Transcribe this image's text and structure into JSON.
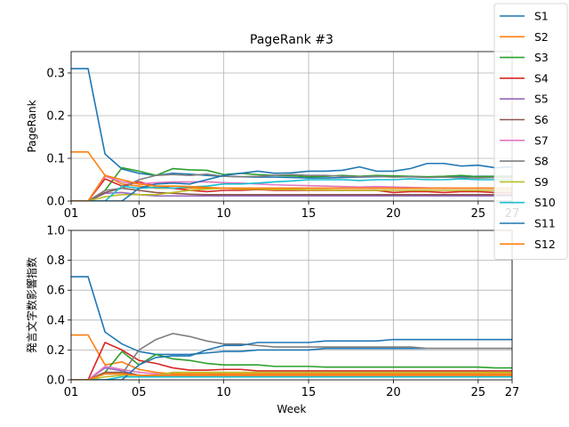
{
  "chart_data": [
    {
      "type": "line",
      "title": "PageRank #3",
      "xlabel": "",
      "ylabel": "PageRank",
      "x": [
        1,
        2,
        3,
        4,
        5,
        6,
        7,
        8,
        9,
        10,
        11,
        12,
        13,
        14,
        15,
        16,
        17,
        18,
        19,
        20,
        21,
        22,
        23,
        24,
        25,
        26,
        27
      ],
      "xticks": [
        1,
        5,
        10,
        15,
        20,
        25,
        27
      ],
      "xtick_labels": [
        "01",
        "05",
        "10",
        "15",
        "20",
        "25",
        "27"
      ],
      "xlim": [
        1,
        27
      ],
      "ylim": [
        0,
        0.35
      ],
      "yticks": [
        0.0,
        0.1,
        0.2,
        0.3
      ],
      "ytick_labels": [
        "0.0",
        "0.1",
        "0.2",
        "0.3"
      ],
      "grid": true,
      "legend_position": "top-right",
      "series": [
        {
          "name": "S1",
          "color": "#1f77b4",
          "values": [
            0.31,
            0.31,
            0.11,
            0.075,
            0.065,
            0.06,
            0.065,
            0.063,
            0.06,
            0.058,
            0.057,
            0.056,
            0.056,
            0.055,
            0.054,
            0.054,
            0.055,
            0.056,
            0.057,
            0.058,
            0.057,
            0.056,
            0.056,
            0.057,
            0.058,
            0.058,
            0.058
          ]
        },
        {
          "name": "S2",
          "color": "#ff7f0e",
          "values": [
            0.115,
            0.115,
            0.06,
            0.04,
            0.035,
            0.03,
            0.03,
            0.03,
            0.03,
            0.03,
            0.03,
            0.03,
            0.03,
            0.03,
            0.03,
            0.03,
            0.03,
            0.03,
            0.03,
            0.03,
            0.03,
            0.03,
            0.03,
            0.03,
            0.03,
            0.03,
            0.03
          ]
        },
        {
          "name": "S3",
          "color": "#2ca02c",
          "values": [
            0,
            0,
            0.025,
            0.078,
            0.07,
            0.06,
            0.076,
            0.073,
            0.072,
            0.062,
            0.065,
            0.062,
            0.06,
            0.059,
            0.057,
            0.058,
            0.06,
            0.058,
            0.06,
            0.059,
            0.058,
            0.057,
            0.058,
            0.06,
            0.057,
            0.058,
            0.058
          ]
        },
        {
          "name": "S4",
          "color": "#d62728",
          "values": [
            0,
            0,
            0.052,
            0.035,
            0.045,
            0.035,
            0.03,
            0.025,
            0.022,
            0.025,
            0.025,
            0.027,
            0.025,
            0.025,
            0.025,
            0.025,
            0.025,
            0.025,
            0.025,
            0.02,
            0.022,
            0.022,
            0.02,
            0.022,
            0.022,
            0.02,
            0.02
          ]
        },
        {
          "name": "S5",
          "color": "#9467bd",
          "values": [
            0,
            0,
            0.018,
            0.02,
            0.015,
            0.012,
            0.012,
            0.012,
            0.012,
            0.012,
            0.012,
            0.012,
            0.012,
            0.012,
            0.012,
            0.012,
            0.012,
            0.012,
            0.012,
            0.012,
            0.012,
            0.012,
            0.012,
            0.012,
            0.012,
            0.012,
            0.012
          ]
        },
        {
          "name": "S6",
          "color": "#8c564b",
          "values": [
            0,
            0,
            0.02,
            0.03,
            0.025,
            0.02,
            0.018,
            0.016,
            0.015,
            0.015,
            0.015,
            0.015,
            0.015,
            0.015,
            0.015,
            0.015,
            0.015,
            0.015,
            0.015,
            0.015,
            0.015,
            0.015,
            0.015,
            0.015,
            0.015,
            0.015,
            0.015
          ]
        },
        {
          "name": "S7",
          "color": "#e377c2",
          "values": [
            0,
            0,
            0.058,
            0.045,
            0.04,
            0.043,
            0.045,
            0.045,
            0.045,
            0.043,
            0.042,
            0.04,
            0.038,
            0.037,
            0.036,
            0.035,
            0.034,
            0.033,
            0.034,
            0.033,
            0.032,
            0.031,
            0.03,
            0.03,
            0.03,
            0.03,
            0.03
          ]
        },
        {
          "name": "S8",
          "color": "#7f7f7f",
          "values": [
            0,
            0,
            0.025,
            0.03,
            0.05,
            0.06,
            0.062,
            0.06,
            0.063,
            0.058,
            0.057,
            0.058,
            0.06,
            0.062,
            0.06,
            0.06,
            0.058,
            0.057,
            0.058,
            0.056,
            0.057,
            0.055,
            0.056,
            0.055,
            0.054,
            0.055,
            0.055
          ]
        },
        {
          "name": "S9",
          "color": "#bcbd22",
          "values": [
            0,
            0,
            0.01,
            0.015,
            0.015,
            0.015,
            0.02,
            0.025,
            0.028,
            0.03,
            0.028,
            0.028,
            0.027,
            0.027,
            0.026,
            0.026,
            0.025,
            0.025,
            0.025,
            0.025,
            0.025,
            0.025,
            0.025,
            0.025,
            0.025,
            0.025,
            0.025
          ]
        },
        {
          "name": "S10",
          "color": "#17becf",
          "values": [
            0,
            0,
            0,
            0.035,
            0.03,
            0.032,
            0.03,
            0.033,
            0.035,
            0.04,
            0.04,
            0.042,
            0.045,
            0.047,
            0.05,
            0.05,
            0.05,
            0.048,
            0.05,
            0.05,
            0.052,
            0.05,
            0.05,
            0.052,
            0.05,
            0.05,
            0.05
          ]
        },
        {
          "name": "S11",
          "color": "#1f77b4",
          "values": [
            0,
            0,
            0,
            0,
            0.03,
            0.04,
            0.042,
            0.04,
            0.05,
            0.06,
            0.065,
            0.07,
            0.065,
            0.066,
            0.07,
            0.07,
            0.072,
            0.08,
            0.07,
            0.07,
            0.076,
            0.088,
            0.088,
            0.082,
            0.084,
            0.078,
            0.08
          ]
        },
        {
          "name": "S12",
          "color": "#ff7f0e",
          "values": [
            0,
            0,
            0.06,
            0.05,
            0.04,
            0.035,
            0.035,
            0.034,
            0.032,
            0.03,
            0.03,
            0.03,
            0.03,
            0.03,
            0.03,
            0.03,
            0.03,
            0.03,
            0.03,
            0.03,
            0.03,
            0.03,
            0.03,
            0.03,
            0.03,
            0.03,
            0.03
          ]
        }
      ]
    },
    {
      "type": "line",
      "title": "",
      "xlabel": "Week",
      "ylabel": "発言文字数影響指数",
      "x": [
        1,
        2,
        3,
        4,
        5,
        6,
        7,
        8,
        9,
        10,
        11,
        12,
        13,
        14,
        15,
        16,
        17,
        18,
        19,
        20,
        21,
        22,
        23,
        24,
        25,
        26,
        27
      ],
      "xticks": [
        1,
        5,
        10,
        15,
        20,
        25,
        27
      ],
      "xtick_labels": [
        "01",
        "05",
        "10",
        "15",
        "20",
        "25",
        "27"
      ],
      "xlim": [
        1,
        27
      ],
      "ylim": [
        0,
        1.0
      ],
      "yticks": [
        0.0,
        0.2,
        0.4,
        0.6,
        0.8,
        1.0
      ],
      "ytick_labels": [
        "0.0",
        "0.2",
        "0.4",
        "0.6",
        "0.8",
        "1.0"
      ],
      "grid": true,
      "series": [
        {
          "name": "S1",
          "color": "#1f77b4",
          "values": [
            0.69,
            0.69,
            0.32,
            0.24,
            0.19,
            0.17,
            0.17,
            0.17,
            0.18,
            0.19,
            0.19,
            0.2,
            0.2,
            0.2,
            0.2,
            0.21,
            0.21,
            0.21,
            0.21,
            0.21,
            0.21,
            0.21,
            0.21,
            0.21,
            0.21,
            0.21,
            0.21
          ]
        },
        {
          "name": "S2",
          "color": "#ff7f0e",
          "values": [
            0.3,
            0.3,
            0.1,
            0.12,
            0.07,
            0.05,
            0.04,
            0.04,
            0.04,
            0.04,
            0.04,
            0.04,
            0.04,
            0.04,
            0.04,
            0.04,
            0.04,
            0.04,
            0.04,
            0.04,
            0.04,
            0.04,
            0.04,
            0.04,
            0.04,
            0.04,
            0.04
          ]
        },
        {
          "name": "S3",
          "color": "#2ca02c",
          "values": [
            0,
            0,
            0.05,
            0.19,
            0.1,
            0.17,
            0.14,
            0.13,
            0.11,
            0.1,
            0.1,
            0.1,
            0.09,
            0.09,
            0.09,
            0.085,
            0.085,
            0.085,
            0.085,
            0.085,
            0.085,
            0.085,
            0.085,
            0.085,
            0.085,
            0.08,
            0.08
          ]
        },
        {
          "name": "S4",
          "color": "#d62728",
          "values": [
            0,
            0,
            0.25,
            0.2,
            0.13,
            0.11,
            0.08,
            0.065,
            0.065,
            0.07,
            0.07,
            0.06,
            0.06,
            0.06,
            0.06,
            0.06,
            0.06,
            0.06,
            0.06,
            0.06,
            0.06,
            0.06,
            0.06,
            0.06,
            0.06,
            0.06,
            0.06
          ]
        },
        {
          "name": "S5",
          "color": "#9467bd",
          "values": [
            0,
            0,
            0.08,
            0.06,
            0.03,
            0.02,
            0.02,
            0.02,
            0.02,
            0.02,
            0.02,
            0.02,
            0.02,
            0.02,
            0.02,
            0.02,
            0.02,
            0.02,
            0.02,
            0.02,
            0.02,
            0.02,
            0.02,
            0.02,
            0.02,
            0.02,
            0.02
          ]
        },
        {
          "name": "S6",
          "color": "#8c564b",
          "values": [
            0,
            0,
            0.05,
            0.05,
            0.03,
            0.02,
            0.02,
            0.02,
            0.02,
            0.02,
            0.02,
            0.02,
            0.02,
            0.02,
            0.02,
            0.02,
            0.02,
            0.02,
            0.02,
            0.02,
            0.02,
            0.02,
            0.02,
            0.02,
            0.02,
            0.02,
            0.02
          ]
        },
        {
          "name": "S7",
          "color": "#e377c2",
          "values": [
            0,
            0,
            0.09,
            0.07,
            0.05,
            0.04,
            0.03,
            0.03,
            0.03,
            0.03,
            0.03,
            0.03,
            0.03,
            0.03,
            0.03,
            0.03,
            0.03,
            0.03,
            0.03,
            0.03,
            0.03,
            0.03,
            0.03,
            0.03,
            0.03,
            0.03,
            0.03
          ]
        },
        {
          "name": "S8",
          "color": "#7f7f7f",
          "values": [
            0,
            0,
            0.04,
            0.04,
            0.2,
            0.27,
            0.31,
            0.29,
            0.26,
            0.24,
            0.24,
            0.23,
            0.22,
            0.22,
            0.22,
            0.22,
            0.22,
            0.22,
            0.22,
            0.22,
            0.22,
            0.21,
            0.21,
            0.21,
            0.21,
            0.21,
            0.21
          ]
        },
        {
          "name": "S9",
          "color": "#bcbd22",
          "values": [
            0,
            0,
            0.02,
            0.03,
            0.03,
            0.03,
            0.05,
            0.05,
            0.05,
            0.05,
            0.05,
            0.05,
            0.05,
            0.05,
            0.05,
            0.05,
            0.05,
            0.05,
            0.05,
            0.05,
            0.05,
            0.05,
            0.05,
            0.05,
            0.05,
            0.05,
            0.05
          ]
        },
        {
          "name": "S10",
          "color": "#17becf",
          "values": [
            0,
            0,
            0,
            0.02,
            0.02,
            0.02,
            0.02,
            0.02,
            0.02,
            0.02,
            0.02,
            0.02,
            0.02,
            0.02,
            0.02,
            0.02,
            0.02,
            0.02,
            0.02,
            0.02,
            0.02,
            0.02,
            0.02,
            0.02,
            0.02,
            0.02,
            0.02
          ]
        },
        {
          "name": "S11",
          "color": "#1f77b4",
          "values": [
            0,
            0,
            0,
            0,
            0.1,
            0.15,
            0.16,
            0.16,
            0.2,
            0.23,
            0.23,
            0.25,
            0.25,
            0.25,
            0.25,
            0.26,
            0.26,
            0.26,
            0.26,
            0.27,
            0.27,
            0.27,
            0.27,
            0.27,
            0.27,
            0.27,
            0.27
          ]
        },
        {
          "name": "S12",
          "color": "#ff7f0e",
          "values": [
            0,
            0,
            0.04,
            0.04,
            0.03,
            0.03,
            0.03,
            0.03,
            0.03,
            0.03,
            0.03,
            0.03,
            0.03,
            0.03,
            0.03,
            0.03,
            0.03,
            0.03,
            0.03,
            0.03,
            0.03,
            0.03,
            0.03,
            0.03,
            0.03,
            0.03,
            0.03
          ]
        }
      ]
    }
  ]
}
